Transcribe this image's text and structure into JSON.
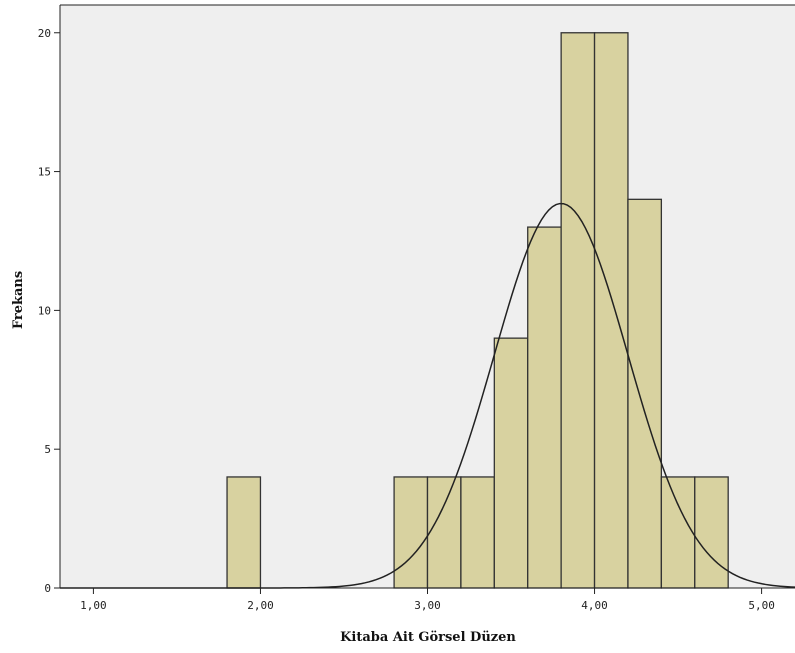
{
  "chart_data": {
    "type": "bar",
    "subtype": "histogram",
    "xlabel": "Kitaba Ait Görsel Düzen",
    "ylabel": "Frekans",
    "xlim": [
      0.8,
      5.2
    ],
    "ylim": [
      0,
      21
    ],
    "x_ticks": [
      1,
      2,
      3,
      4,
      5
    ],
    "x_tick_labels": [
      "1,00",
      "2,00",
      "3,00",
      "4,00",
      "5,00"
    ],
    "y_ticks": [
      0,
      5,
      10,
      15,
      20
    ],
    "y_tick_labels": [
      "0",
      "5",
      "10",
      "15",
      "20"
    ],
    "bins": [
      {
        "start": 1.8,
        "end": 2.0,
        "count": 4
      },
      {
        "start": 2.8,
        "end": 3.0,
        "count": 4
      },
      {
        "start": 3.0,
        "end": 3.2,
        "count": 4
      },
      {
        "start": 3.2,
        "end": 3.4,
        "count": 4
      },
      {
        "start": 3.4,
        "end": 3.6,
        "count": 9
      },
      {
        "start": 3.6,
        "end": 3.8,
        "count": 13
      },
      {
        "start": 3.8,
        "end": 4.0,
        "count": 20
      },
      {
        "start": 4.0,
        "end": 4.2,
        "count": 20
      },
      {
        "start": 4.2,
        "end": 4.4,
        "count": 14
      },
      {
        "start": 4.4,
        "end": 4.6,
        "count": 4
      },
      {
        "start": 4.6,
        "end": 4.8,
        "count": 4
      }
    ],
    "normal_curve": {
      "mean": 3.8,
      "sd": 0.4,
      "peak": 13.85
    },
    "grid": false,
    "colors": {
      "bar_fill": "#d8d2a0",
      "bar_stroke": "#333333",
      "plot_bg": "#efefef",
      "curve": "#222222"
    }
  }
}
